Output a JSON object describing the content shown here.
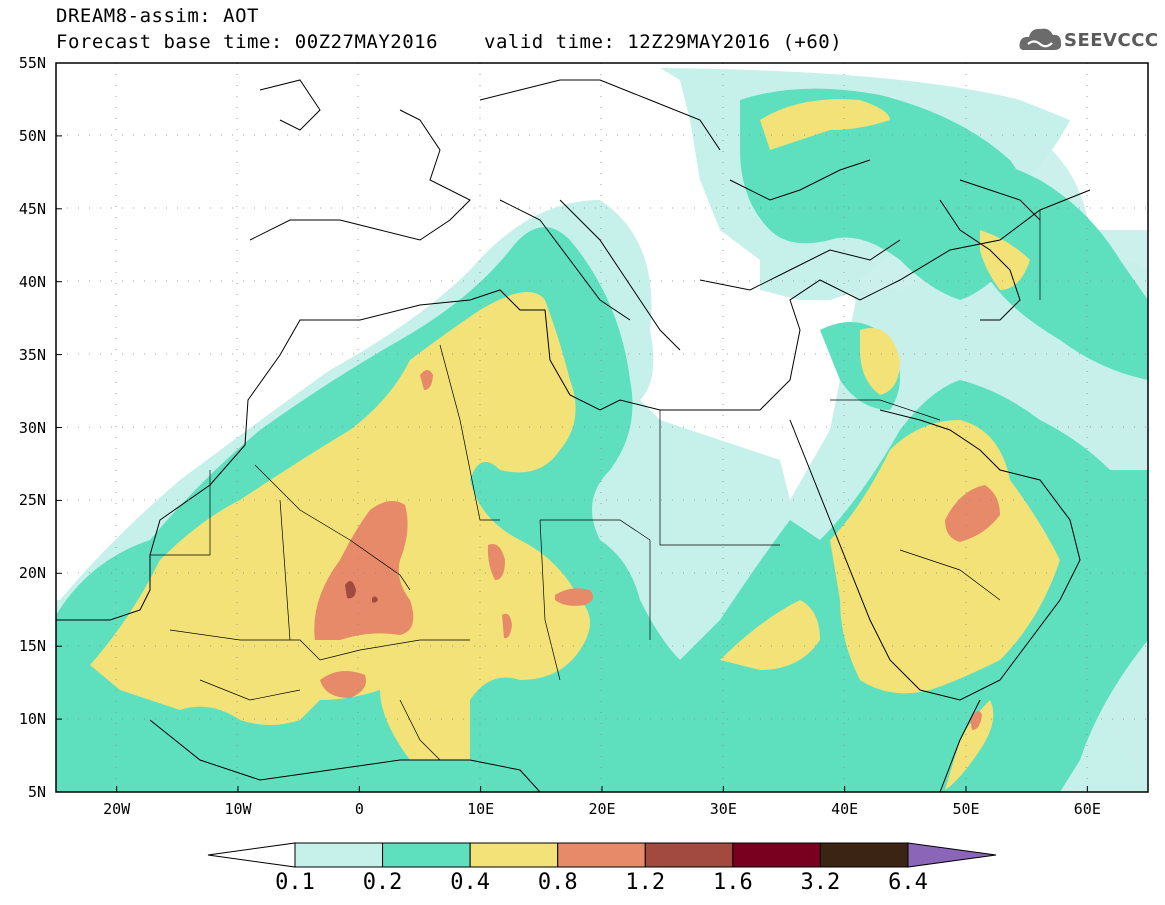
{
  "header": {
    "title": "DREAM8-assim: AOT",
    "base_time": "Forecast base time: 00Z27MAY2016",
    "valid_time": "valid time: 12Z29MAY2016 (+60)"
  },
  "logo": {
    "text": "SEEVCCC",
    "icon": "cloud-icon"
  },
  "map": {
    "lon_range": [
      -25,
      65
    ],
    "lat_range": [
      5,
      55
    ],
    "lat_labels": [
      "5N",
      "10N",
      "15N",
      "20N",
      "25N",
      "30N",
      "35N",
      "40N",
      "45N",
      "50N",
      "55N"
    ],
    "lon_labels": [
      "20W",
      "10W",
      "0",
      "10E",
      "20E",
      "30E",
      "40E",
      "50E",
      "60E"
    ]
  },
  "colorbar": {
    "labels": [
      "0.1",
      "0.2",
      "0.4",
      "0.8",
      "1.2",
      "1.6",
      "3.2",
      "6.4"
    ],
    "colors": [
      "#ffffff",
      "#c6f0ea",
      "#5ee0bf",
      "#f2e277",
      "#e68a6a",
      "#a24a40",
      "#7a0020",
      "#3b2414",
      "#8b66b8"
    ]
  }
}
